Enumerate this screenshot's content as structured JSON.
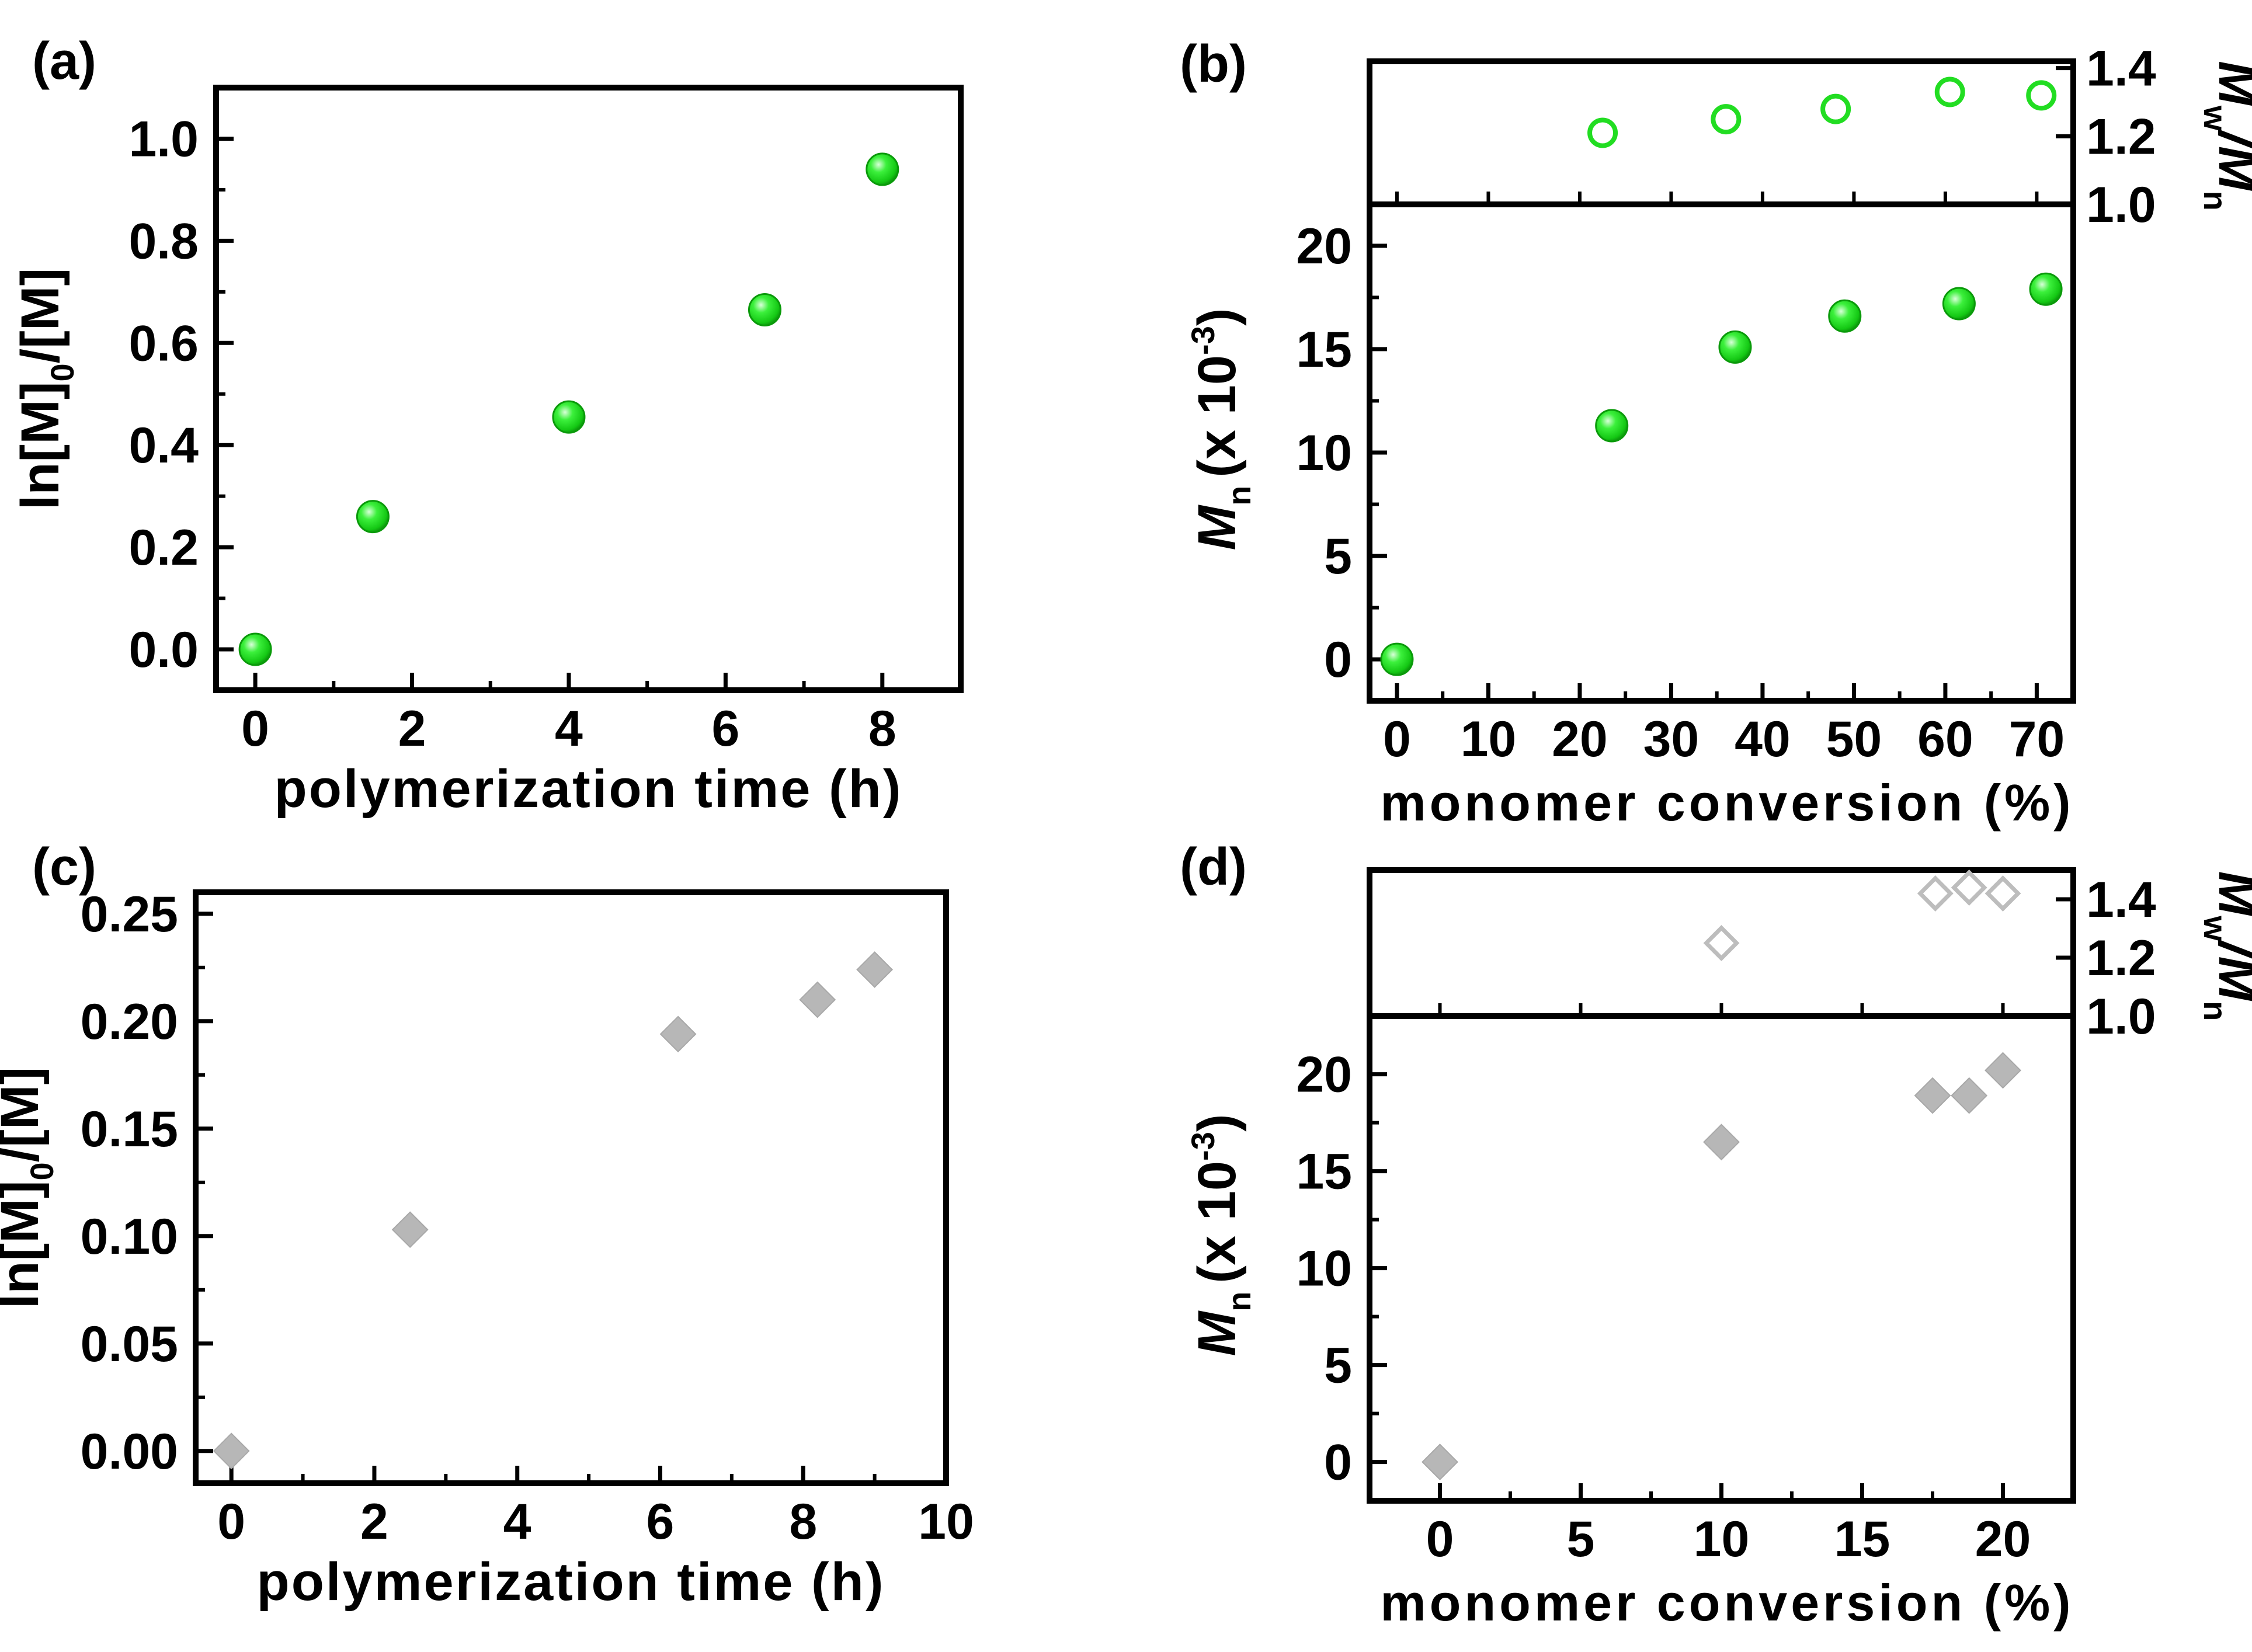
{
  "panel_labels": [
    "(a)",
    "(b)",
    "(c)",
    "(d)"
  ],
  "colors": {
    "green": "#22dd22",
    "green_dark": "#0a9a0a",
    "green_light": "#b8ffb8",
    "grey": "#b7b7b7",
    "grey_open": "#bdbdbd",
    "axis": "#000000"
  },
  "chart_data": [
    {
      "panel": "(a)",
      "type": "scatter",
      "xlabel": "polymerization time (h)",
      "ylabel_parts": [
        "ln[M]",
        "0",
        "/[M]"
      ],
      "xlim": [
        -0.5,
        9
      ],
      "ylim": [
        -0.08,
        1.1
      ],
      "xticks": [
        0,
        2,
        4,
        6,
        8
      ],
      "xtick_labels": [
        "0",
        "2",
        "4",
        "6",
        "8"
      ],
      "yticks": [
        0,
        0.2,
        0.4,
        0.6,
        0.8,
        1.0
      ],
      "ytick_labels": [
        "0.0",
        "0.2",
        "0.4",
        "0.6",
        "0.8",
        "1.0"
      ],
      "marker": "filled-sphere",
      "points": [
        [
          0,
          0.0
        ],
        [
          1.5,
          0.26
        ],
        [
          4,
          0.455
        ],
        [
          6.5,
          0.665
        ],
        [
          8,
          0.94
        ]
      ]
    },
    {
      "panel": "(b)",
      "type": "scatter",
      "xlabel": "monomer conversion (%)",
      "xlim": [
        -3,
        74
      ],
      "xticks": [
        0,
        10,
        20,
        30,
        40,
        50,
        60,
        70
      ],
      "xtick_labels": [
        "0",
        "10",
        "20",
        "30",
        "40",
        "50",
        "60",
        "70"
      ],
      "lower": {
        "ylabel_parts": [
          "M",
          "n",
          "(x 10",
          "-3",
          ")"
        ],
        "ylim": [
          -2,
          22
        ],
        "yticks": [
          0,
          5,
          10,
          15,
          20
        ],
        "ytick_labels": [
          "0",
          "5",
          "10",
          "15",
          "20"
        ],
        "marker": "filled-sphere",
        "points": [
          [
            0,
            0.0
          ],
          [
            23.5,
            11.3
          ],
          [
            37,
            15.1
          ],
          [
            49,
            16.6
          ],
          [
            61.5,
            17.2
          ],
          [
            71,
            17.9
          ]
        ]
      },
      "upper": {
        "ylabel_parts": [
          "M",
          "w",
          "/M",
          "n"
        ],
        "ylim": [
          1.0,
          1.42
        ],
        "yticks": [
          1.0,
          1.2,
          1.4
        ],
        "ytick_labels": [
          "1.0",
          "1.2",
          "1.4"
        ],
        "marker": "open-circle",
        "points": [
          [
            22.5,
            1.21
          ],
          [
            36,
            1.25
          ],
          [
            48,
            1.28
          ],
          [
            60.5,
            1.33
          ],
          [
            70.5,
            1.32
          ]
        ]
      }
    },
    {
      "panel": "(c)",
      "type": "scatter",
      "xlabel": "polymerization time (h)",
      "ylabel_parts": [
        "ln[M]",
        "0",
        "/[M]"
      ],
      "xlim": [
        -0.5,
        10
      ],
      "ylim": [
        -0.015,
        0.26
      ],
      "xticks": [
        0,
        2,
        4,
        6,
        8,
        10
      ],
      "xtick_labels": [
        "0",
        "2",
        "4",
        "6",
        "8",
        "10"
      ],
      "yticks": [
        0,
        0.05,
        0.1,
        0.15,
        0.2,
        0.25
      ],
      "ytick_labels": [
        "0.00",
        "0.05",
        "0.10",
        "0.15",
        "0.20",
        "0.25"
      ],
      "marker": "filled-diamond",
      "points": [
        [
          0,
          0.0
        ],
        [
          2.5,
          0.103
        ],
        [
          6.25,
          0.194
        ],
        [
          8.2,
          0.21
        ],
        [
          9,
          0.224
        ]
      ]
    },
    {
      "panel": "(d)",
      "type": "scatter",
      "xlabel": "monomer conversion (%)",
      "xlim": [
        -2.5,
        22.5
      ],
      "xticks": [
        0,
        5,
        10,
        15,
        20
      ],
      "xtick_labels": [
        "0",
        "5",
        "10",
        "15",
        "20"
      ],
      "lower": {
        "ylabel_parts": [
          "M",
          "n",
          "(x 10",
          "-3",
          ")"
        ],
        "ylim": [
          -2,
          23
        ],
        "yticks": [
          0,
          5,
          10,
          15,
          20
        ],
        "ytick_labels": [
          "0",
          "5",
          "10",
          "15",
          "20"
        ],
        "marker": "filled-diamond",
        "points": [
          [
            0,
            0.0
          ],
          [
            10,
            16.5
          ],
          [
            17.5,
            18.9
          ],
          [
            18.8,
            18.9
          ],
          [
            20,
            20.2
          ]
        ]
      },
      "upper": {
        "ylabel_parts": [
          "M",
          "w",
          "/M",
          "n"
        ],
        "ylim": [
          1.0,
          1.5
        ],
        "yticks": [
          1.0,
          1.2,
          1.4
        ],
        "ytick_labels": [
          "1.0",
          "1.2",
          "1.4"
        ],
        "marker": "open-diamond",
        "points": [
          [
            10,
            1.25
          ],
          [
            17.6,
            1.42
          ],
          [
            18.8,
            1.44
          ],
          [
            20,
            1.42
          ]
        ]
      }
    }
  ]
}
